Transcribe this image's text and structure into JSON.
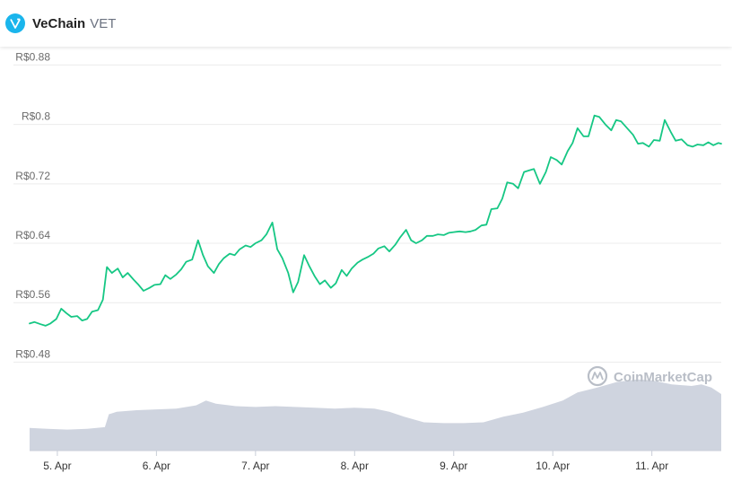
{
  "header": {
    "coin_name": "VeChain",
    "coin_symbol": "VET",
    "logo_icon": "vechain-v-icon",
    "logo_color": "#1ab5ec"
  },
  "watermark": {
    "text": "CoinMarketCap",
    "icon": "coinmarketcap-logo-icon"
  },
  "chart_data": {
    "type": "line",
    "title": "",
    "xlabel": "",
    "ylabel": "",
    "ylim": [
      0.46,
      0.895
    ],
    "yticks": [
      {
        "value": 0.48,
        "label": "R$0.48"
      },
      {
        "value": 0.56,
        "label": "R$0.56"
      },
      {
        "value": 0.64,
        "label": "R$0.64"
      },
      {
        "value": 0.72,
        "label": "R$0.72"
      },
      {
        "value": 0.8,
        "label": "R$0.8"
      },
      {
        "value": 0.88,
        "label": "R$0.88"
      }
    ],
    "xlim": [
      4.72,
      11.7
    ],
    "xticks": [
      {
        "value": 5,
        "label": "5. Apr"
      },
      {
        "value": 6,
        "label": "6. Apr"
      },
      {
        "value": 7,
        "label": "7. Apr"
      },
      {
        "value": 8,
        "label": "8. Apr"
      },
      {
        "value": 9,
        "label": "9. Apr"
      },
      {
        "value": 10,
        "label": "10. Apr"
      },
      {
        "value": 11,
        "label": "11. Apr"
      }
    ],
    "grid": true,
    "line_color": "#16c784",
    "volume_color": "#cfd4df",
    "series": [
      {
        "values": [
          [
            4.72,
            0.532
          ],
          [
            4.77,
            0.534
          ],
          [
            4.83,
            0.531
          ],
          [
            4.88,
            0.529
          ],
          [
            4.93,
            0.532
          ],
          [
            4.99,
            0.538
          ],
          [
            5.04,
            0.552
          ],
          [
            5.09,
            0.546
          ],
          [
            5.14,
            0.541
          ],
          [
            5.2,
            0.542
          ],
          [
            5.25,
            0.536
          ],
          [
            5.3,
            0.538
          ],
          [
            5.35,
            0.548
          ],
          [
            5.41,
            0.55
          ],
          [
            5.46,
            0.564
          ],
          [
            5.5,
            0.608
          ],
          [
            5.55,
            0.6
          ],
          [
            5.61,
            0.606
          ],
          [
            5.66,
            0.594
          ],
          [
            5.71,
            0.6
          ],
          [
            5.77,
            0.591
          ],
          [
            5.82,
            0.584
          ],
          [
            5.87,
            0.576
          ],
          [
            5.93,
            0.58
          ],
          [
            5.98,
            0.584
          ],
          [
            6.04,
            0.585
          ],
          [
            6.09,
            0.597
          ],
          [
            6.14,
            0.592
          ],
          [
            6.2,
            0.598
          ],
          [
            6.25,
            0.605
          ],
          [
            6.3,
            0.615
          ],
          [
            6.36,
            0.618
          ],
          [
            6.42,
            0.644
          ],
          [
            6.47,
            0.624
          ],
          [
            6.52,
            0.609
          ],
          [
            6.58,
            0.6
          ],
          [
            6.63,
            0.612
          ],
          [
            6.68,
            0.62
          ],
          [
            6.74,
            0.626
          ],
          [
            6.79,
            0.624
          ],
          [
            6.84,
            0.632
          ],
          [
            6.9,
            0.637
          ],
          [
            6.95,
            0.635
          ],
          [
            7.0,
            0.64
          ],
          [
            7.06,
            0.644
          ],
          [
            7.11,
            0.652
          ],
          [
            7.17,
            0.668
          ],
          [
            7.22,
            0.632
          ],
          [
            7.27,
            0.62
          ],
          [
            7.33,
            0.6
          ],
          [
            7.38,
            0.574
          ],
          [
            7.43,
            0.588
          ],
          [
            7.49,
            0.624
          ],
          [
            7.54,
            0.61
          ],
          [
            7.6,
            0.595
          ],
          [
            7.65,
            0.585
          ],
          [
            7.7,
            0.59
          ],
          [
            7.76,
            0.58
          ],
          [
            7.81,
            0.586
          ],
          [
            7.87,
            0.604
          ],
          [
            7.92,
            0.596
          ],
          [
            7.97,
            0.606
          ],
          [
            8.03,
            0.614
          ],
          [
            8.08,
            0.618
          ],
          [
            8.14,
            0.622
          ],
          [
            8.19,
            0.626
          ],
          [
            8.24,
            0.633
          ],
          [
            8.3,
            0.636
          ],
          [
            8.35,
            0.629
          ],
          [
            8.41,
            0.638
          ],
          [
            8.46,
            0.648
          ],
          [
            8.52,
            0.658
          ],
          [
            8.57,
            0.644
          ],
          [
            8.62,
            0.64
          ],
          [
            8.68,
            0.644
          ],
          [
            8.73,
            0.65
          ],
          [
            8.79,
            0.65
          ],
          [
            8.84,
            0.652
          ],
          [
            8.9,
            0.651
          ],
          [
            8.95,
            0.654
          ],
          [
            9.0,
            0.655
          ],
          [
            9.06,
            0.656
          ],
          [
            9.12,
            0.655
          ],
          [
            9.17,
            0.656
          ],
          [
            9.22,
            0.658
          ],
          [
            9.28,
            0.664
          ],
          [
            9.33,
            0.665
          ],
          [
            9.38,
            0.686
          ],
          [
            9.44,
            0.687
          ],
          [
            9.49,
            0.7
          ],
          [
            9.54,
            0.722
          ],
          [
            9.6,
            0.72
          ],
          [
            9.65,
            0.714
          ],
          [
            9.71,
            0.736
          ],
          [
            9.76,
            0.738
          ],
          [
            9.81,
            0.74
          ],
          [
            9.87,
            0.72
          ],
          [
            9.93,
            0.736
          ],
          [
            9.98,
            0.756
          ],
          [
            10.04,
            0.752
          ],
          [
            10.09,
            0.746
          ],
          [
            10.15,
            0.764
          ],
          [
            10.2,
            0.775
          ],
          [
            10.25,
            0.795
          ],
          [
            10.31,
            0.784
          ],
          [
            10.36,
            0.784
          ],
          [
            10.42,
            0.812
          ],
          [
            10.47,
            0.81
          ],
          [
            10.53,
            0.8
          ],
          [
            10.59,
            0.792
          ],
          [
            10.64,
            0.806
          ],
          [
            10.69,
            0.804
          ],
          [
            10.75,
            0.795
          ],
          [
            10.81,
            0.786
          ],
          [
            10.86,
            0.774
          ],
          [
            10.91,
            0.775
          ],
          [
            10.97,
            0.77
          ],
          [
            11.02,
            0.779
          ],
          [
            11.08,
            0.778
          ],
          [
            11.13,
            0.806
          ],
          [
            11.19,
            0.79
          ],
          [
            11.24,
            0.778
          ],
          [
            11.3,
            0.78
          ],
          [
            11.36,
            0.772
          ],
          [
            11.41,
            0.77
          ],
          [
            11.46,
            0.773
          ],
          [
            11.52,
            0.772
          ],
          [
            11.57,
            0.776
          ],
          [
            11.62,
            0.772
          ],
          [
            11.67,
            0.775
          ],
          [
            11.7,
            0.774
          ]
        ]
      }
    ],
    "volume": [
      [
        4.72,
        0.28
      ],
      [
        4.9,
        0.27
      ],
      [
        5.1,
        0.26
      ],
      [
        5.3,
        0.27
      ],
      [
        5.48,
        0.29
      ],
      [
        5.52,
        0.45
      ],
      [
        5.6,
        0.48
      ],
      [
        5.8,
        0.5
      ],
      [
        6.0,
        0.51
      ],
      [
        6.2,
        0.52
      ],
      [
        6.4,
        0.56
      ],
      [
        6.5,
        0.62
      ],
      [
        6.6,
        0.58
      ],
      [
        6.8,
        0.55
      ],
      [
        7.0,
        0.54
      ],
      [
        7.2,
        0.55
      ],
      [
        7.4,
        0.54
      ],
      [
        7.6,
        0.53
      ],
      [
        7.8,
        0.52
      ],
      [
        8.0,
        0.53
      ],
      [
        8.2,
        0.52
      ],
      [
        8.35,
        0.48
      ],
      [
        8.5,
        0.42
      ],
      [
        8.7,
        0.35
      ],
      [
        8.9,
        0.34
      ],
      [
        9.1,
        0.34
      ],
      [
        9.3,
        0.35
      ],
      [
        9.5,
        0.42
      ],
      [
        9.7,
        0.47
      ],
      [
        9.9,
        0.54
      ],
      [
        10.1,
        0.62
      ],
      [
        10.25,
        0.72
      ],
      [
        10.45,
        0.78
      ],
      [
        10.65,
        0.85
      ],
      [
        10.85,
        0.88
      ],
      [
        11.0,
        0.87
      ],
      [
        11.2,
        0.82
      ],
      [
        11.4,
        0.8
      ],
      [
        11.5,
        0.82
      ],
      [
        11.6,
        0.78
      ],
      [
        11.7,
        0.7
      ]
    ]
  }
}
